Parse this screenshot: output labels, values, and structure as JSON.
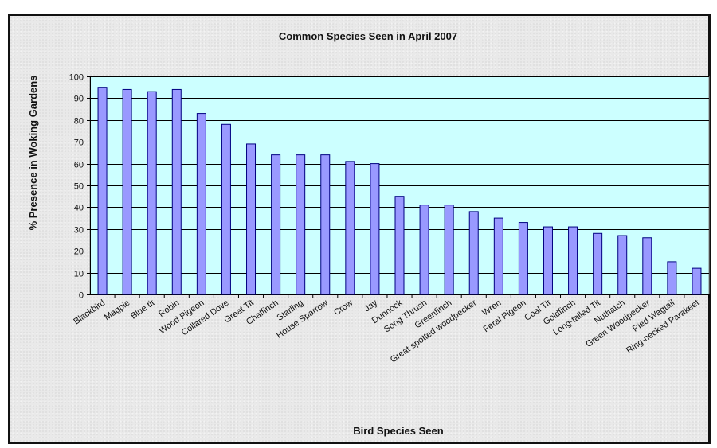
{
  "chart_data": {
    "type": "bar",
    "title": "Common Species Seen in April 2007",
    "xlabel": "Bird Species Seen",
    "ylabel": "% Presence in Woking Gardens",
    "ylim": [
      0,
      100
    ],
    "yticks": [
      0,
      10,
      20,
      30,
      40,
      50,
      60,
      70,
      80,
      90,
      100
    ],
    "grid": true,
    "legend": "none",
    "categories": [
      "Blackbird",
      "Magpie",
      "Blue tit",
      "Robin",
      "Wood Pigeon",
      "Collared Dove",
      "Great Tit",
      "Chaffinch",
      "Starling",
      "House Sparrow",
      "Crow",
      "Jay",
      "Dunnock",
      "Song Thrush",
      "Greenfinch",
      "Great spotted woodpecker",
      "Wren",
      "Feral Pigeon",
      "Coal Tit",
      "Goldfinch",
      "Long-tailed Tit",
      "Nuthatch",
      "Green Woodpecker",
      "Pied Wagtail",
      "Ring-necked Parakeet"
    ],
    "values": [
      95,
      94,
      93,
      94,
      83,
      78,
      69,
      64,
      64,
      64,
      61,
      60,
      45,
      41,
      41,
      38,
      35,
      33,
      31,
      31,
      28,
      27,
      26,
      15,
      12
    ],
    "colors": {
      "plot_bg": "#ccffff",
      "bar_fill": "#9999ff",
      "bar_stroke": "#000080",
      "grid": "#000000"
    }
  }
}
